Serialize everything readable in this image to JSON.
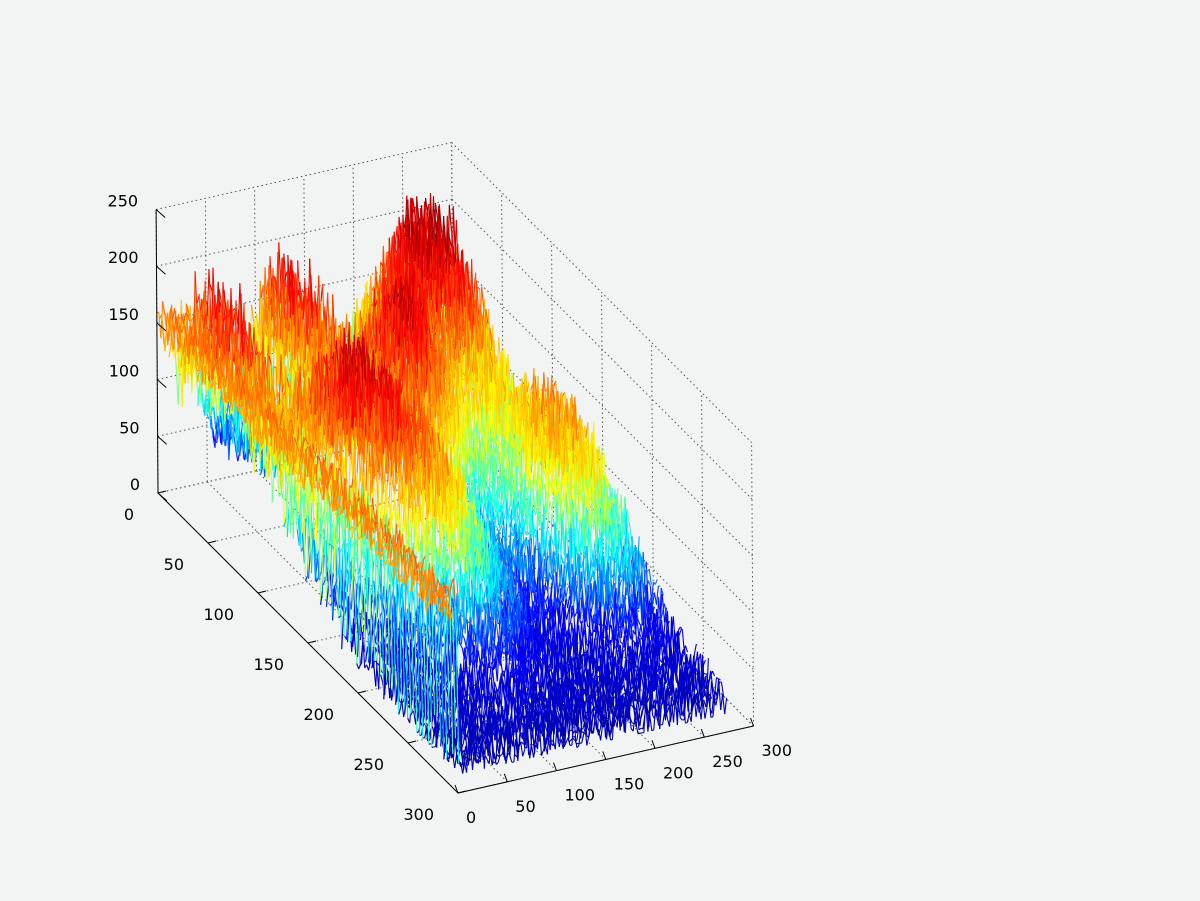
{
  "figure": {
    "background": "#f2f4f4",
    "axis_color": "#000000",
    "grid_color": "#555555"
  },
  "chart_data": {
    "type": "surface",
    "title": "",
    "xlabel": "",
    "ylabel": "",
    "zlabel": "",
    "x_range": [
      0,
      300
    ],
    "y_range": [
      0,
      300
    ],
    "z_range": [
      0,
      250
    ],
    "x_ticks": [
      "0",
      "50",
      "100",
      "150",
      "200",
      "250",
      "300"
    ],
    "y_ticks": [
      "0",
      "50",
      "100",
      "150",
      "200",
      "250",
      "300"
    ],
    "z_ticks": [
      "0",
      "50",
      "100",
      "150",
      "200",
      "250"
    ],
    "grid": true,
    "grid_style": "dotted",
    "colormap": "jet",
    "colormap_stops": [
      "#00008f",
      "#0000ff",
      "#00ffff",
      "#ffff00",
      "#ff8000",
      "#ff0000",
      "#800000"
    ],
    "base_level": 12,
    "noise": 22,
    "plateau": {
      "x_from": 0,
      "x_to": 14,
      "y_from": 0,
      "y_to": 285,
      "z": 152
    },
    "hills": [
      {
        "x": 25,
        "y": 40,
        "height": 200,
        "sx": 18,
        "sy": 45
      },
      {
        "x": 65,
        "y": 120,
        "height": 160,
        "sx": 28,
        "sy": 35
      },
      {
        "x": 105,
        "y": 30,
        "height": 195,
        "sx": 22,
        "sy": 35
      },
      {
        "x": 110,
        "y": 160,
        "height": 145,
        "sx": 38,
        "sy": 40
      },
      {
        "x": 160,
        "y": 90,
        "height": 175,
        "sx": 30,
        "sy": 30
      },
      {
        "x": 205,
        "y": 40,
        "height": 140,
        "sx": 35,
        "sy": 35
      },
      {
        "x": 255,
        "y": 35,
        "height": 165,
        "sx": 30,
        "sy": 35
      },
      {
        "x": 255,
        "y": 150,
        "height": 150,
        "sx": 38,
        "sy": 45
      }
    ]
  }
}
